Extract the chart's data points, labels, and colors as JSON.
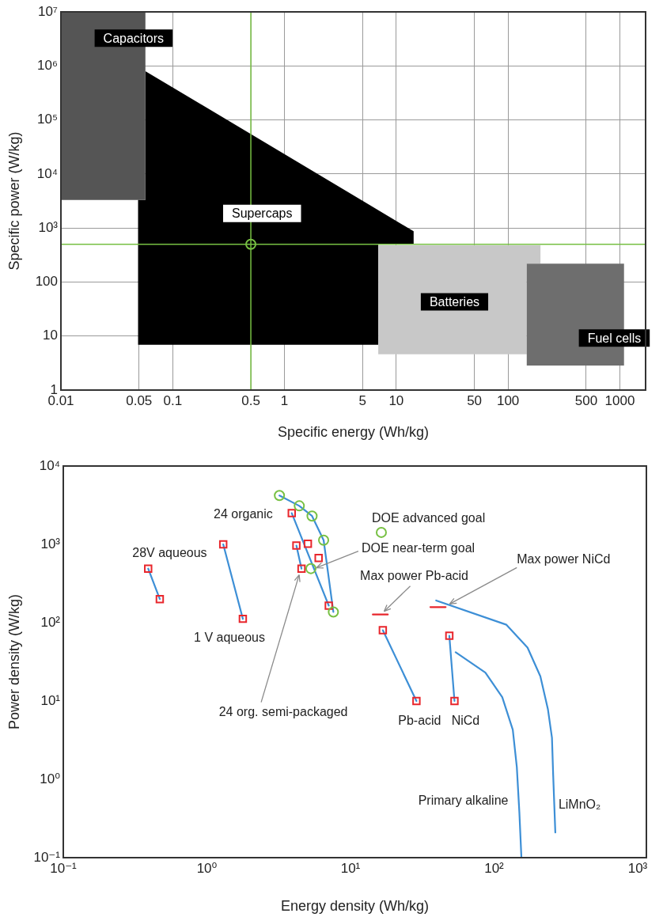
{
  "chart_data": [
    {
      "type": "area",
      "xlabel": "Specific energy (Wh/kg)",
      "ylabel": "Specific power (W/kg)",
      "log": "xy",
      "grid": true,
      "xlim": [
        0.01,
        1700
      ],
      "ylim": [
        1,
        10000000
      ],
      "xticks": [
        0.01,
        0.05,
        0.1,
        0.5,
        1,
        5,
        10,
        50,
        100,
        500,
        1000
      ],
      "yticks": [
        1,
        10,
        100,
        {
          "value": 1000,
          "label": "10³"
        },
        {
          "value": 10000,
          "label": "10⁴"
        },
        {
          "value": 100000,
          "label": "10⁵"
        },
        {
          "value": 1000000,
          "label": "10⁶"
        },
        {
          "value": 10000000,
          "label": "10⁷"
        }
      ],
      "series": [
        {
          "name": "Supercaps",
          "color": "#000000",
          "x": [
            0.049,
            0.049,
            0.057,
            0.057,
            14.3,
            14.3,
            6.9,
            6.9
          ],
          "values": [
            6.9,
            3300,
            3300,
            800000,
            870,
            500,
            500,
            6.9
          ]
        },
        {
          "name": "Batteries",
          "color": "#c8c8c8",
          "x": [
            6.9,
            147,
            147,
            195,
            195,
            6.9
          ],
          "values": [
            4.6,
            4.6,
            218,
            218,
            480,
            480
          ]
        },
        {
          "name": "Fuel cells",
          "color": "#6e6e6e",
          "x": [
            147,
            1090,
            1090,
            147
          ],
          "values": [
            2.85,
            2.85,
            218,
            218
          ]
        },
        {
          "name": "Capacitors",
          "color": "#555555",
          "x": [
            0.01,
            0.057,
            0.057,
            0.01
          ],
          "values": [
            3300,
            3300,
            10000000,
            10000000
          ]
        },
        {
          "type": "scatter",
          "color": "#77c043",
          "marker": "circle",
          "x": [
            0.5
          ],
          "values": [
            500
          ]
        }
      ],
      "ref_lines": [
        {
          "axis": "x",
          "value": 0.5,
          "color": "#77c043"
        },
        {
          "axis": "y",
          "value": 500,
          "color": "#77c043"
        }
      ]
    },
    {
      "type": "line",
      "xlabel": "Energy density (Wh/kg)",
      "ylabel": "Power density (W/kg)",
      "log": "xy",
      "xlim": [
        0.1,
        1150
      ],
      "ylim": [
        0.1,
        10000
      ],
      "xticks": [
        {
          "value": 0.1,
          "label": "10⁻¹"
        },
        {
          "value": 1,
          "label": "10⁰"
        },
        {
          "value": 10,
          "label": "10¹"
        },
        {
          "value": 100,
          "label": "10²"
        },
        {
          "value": 1000,
          "label": "10³"
        }
      ],
      "yticks": [
        {
          "value": 0.1,
          "label": "10⁻¹"
        },
        {
          "value": 1,
          "label": "10⁰"
        },
        {
          "value": 10,
          "label": "10¹"
        },
        {
          "value": 100,
          "label": "10²"
        },
        {
          "value": 1000,
          "label": "10³"
        },
        {
          "value": 10000,
          "label": "10⁴"
        }
      ],
      "series": [
        {
          "color": "#3d8fd6",
          "x": [
            0.39,
            0.47
          ],
          "values": [
            490,
            200
          ]
        },
        {
          "color": "#3d8fd6",
          "x": [
            1.3,
            1.78
          ],
          "values": [
            1000,
            112
          ]
        },
        {
          "color": "#3d8fd6",
          "x": [
            3.9,
            7.06
          ],
          "values": [
            2500,
            165
          ]
        },
        {
          "color": "#3d8fd6",
          "x": [
            4.2,
            4.56
          ],
          "values": [
            965,
            490
          ]
        },
        {
          "color": "#3d8fd6",
          "x": [
            3.2,
            4.4,
            5.4,
            6.5,
            7.6
          ],
          "values": [
            4200,
            3100,
            2300,
            1130,
            137
          ]
        },
        {
          "color": "#3d8fd6",
          "x": [
            16.8,
            28.8
          ],
          "values": [
            80,
            10
          ]
        },
        {
          "color": "#3d8fd6",
          "x": [
            48.8,
            53
          ],
          "values": [
            68,
            10
          ]
        },
        {
          "color": "#3d8fd6",
          "x": [
            39.5,
            122,
            171,
            210,
            237,
            253,
            258,
            267
          ],
          "values": [
            192,
            94,
            48,
            20.7,
            7.9,
            3.4,
            1.13,
            0.21
          ]
        },
        {
          "color": "#3d8fd6",
          "x": [
            54,
            87,
            114,
            135,
            144,
            150,
            155
          ],
          "values": [
            42,
            23,
            11.2,
            4.3,
            1.44,
            0.38,
            0.1
          ]
        },
        {
          "color": "#e8262c",
          "x": [
            14.3,
            18.2
          ],
          "values": [
            127,
            127
          ]
        },
        {
          "color": "#e8262c",
          "x": [
            36,
            46
          ],
          "values": [
            158,
            158
          ]
        },
        {
          "type": "scatter",
          "color": "#e8262c",
          "marker": "square",
          "x": [
            0.39,
            0.47,
            1.3,
            1.78,
            3.9,
            7.06,
            4.2,
            4.56,
            5.05,
            6.0,
            16.8,
            28.8,
            48.8,
            53
          ],
          "values": [
            490,
            200,
            1000,
            112,
            2500,
            165,
            965,
            490,
            1020,
            670,
            80,
            10,
            68,
            10
          ]
        },
        {
          "type": "scatter",
          "color": "#77c043",
          "marker": "circle",
          "x": [
            3.2,
            4.4,
            5.4,
            6.5,
            7.6,
            16.4,
            5.3
          ],
          "values": [
            4200,
            3100,
            2300,
            1130,
            137,
            1420,
            490
          ]
        }
      ],
      "annotations": [
        {
          "text": "24 organic",
          "x": 3.9,
          "y": 2500
        },
        {
          "text": "28V aqueous",
          "x": 0.39,
          "y": 490
        },
        {
          "text": "1 V aqueous",
          "x": 1.78,
          "y": 112
        },
        {
          "text": "24 org. semi-packaged",
          "x": 4.56,
          "y": 490
        },
        {
          "text": "DOE advanced goal",
          "x": 16.4,
          "y": 1420
        },
        {
          "text": "DOE near-term goal",
          "x": 5.3,
          "y": 490
        },
        {
          "text": "Max power Pb-acid",
          "x": 16.1,
          "y": 127
        },
        {
          "text": "Max power NiCd",
          "x": 46,
          "y": 158
        },
        {
          "text": "Pb-acid",
          "x": 28.8,
          "y": 10
        },
        {
          "text": "NiCd",
          "x": 53,
          "y": 10
        },
        {
          "text": "Primary alkaline",
          "x": 150,
          "y": 0.38
        },
        {
          "text": "LiMnO₂",
          "x": 267,
          "y": 0.21
        }
      ]
    }
  ]
}
